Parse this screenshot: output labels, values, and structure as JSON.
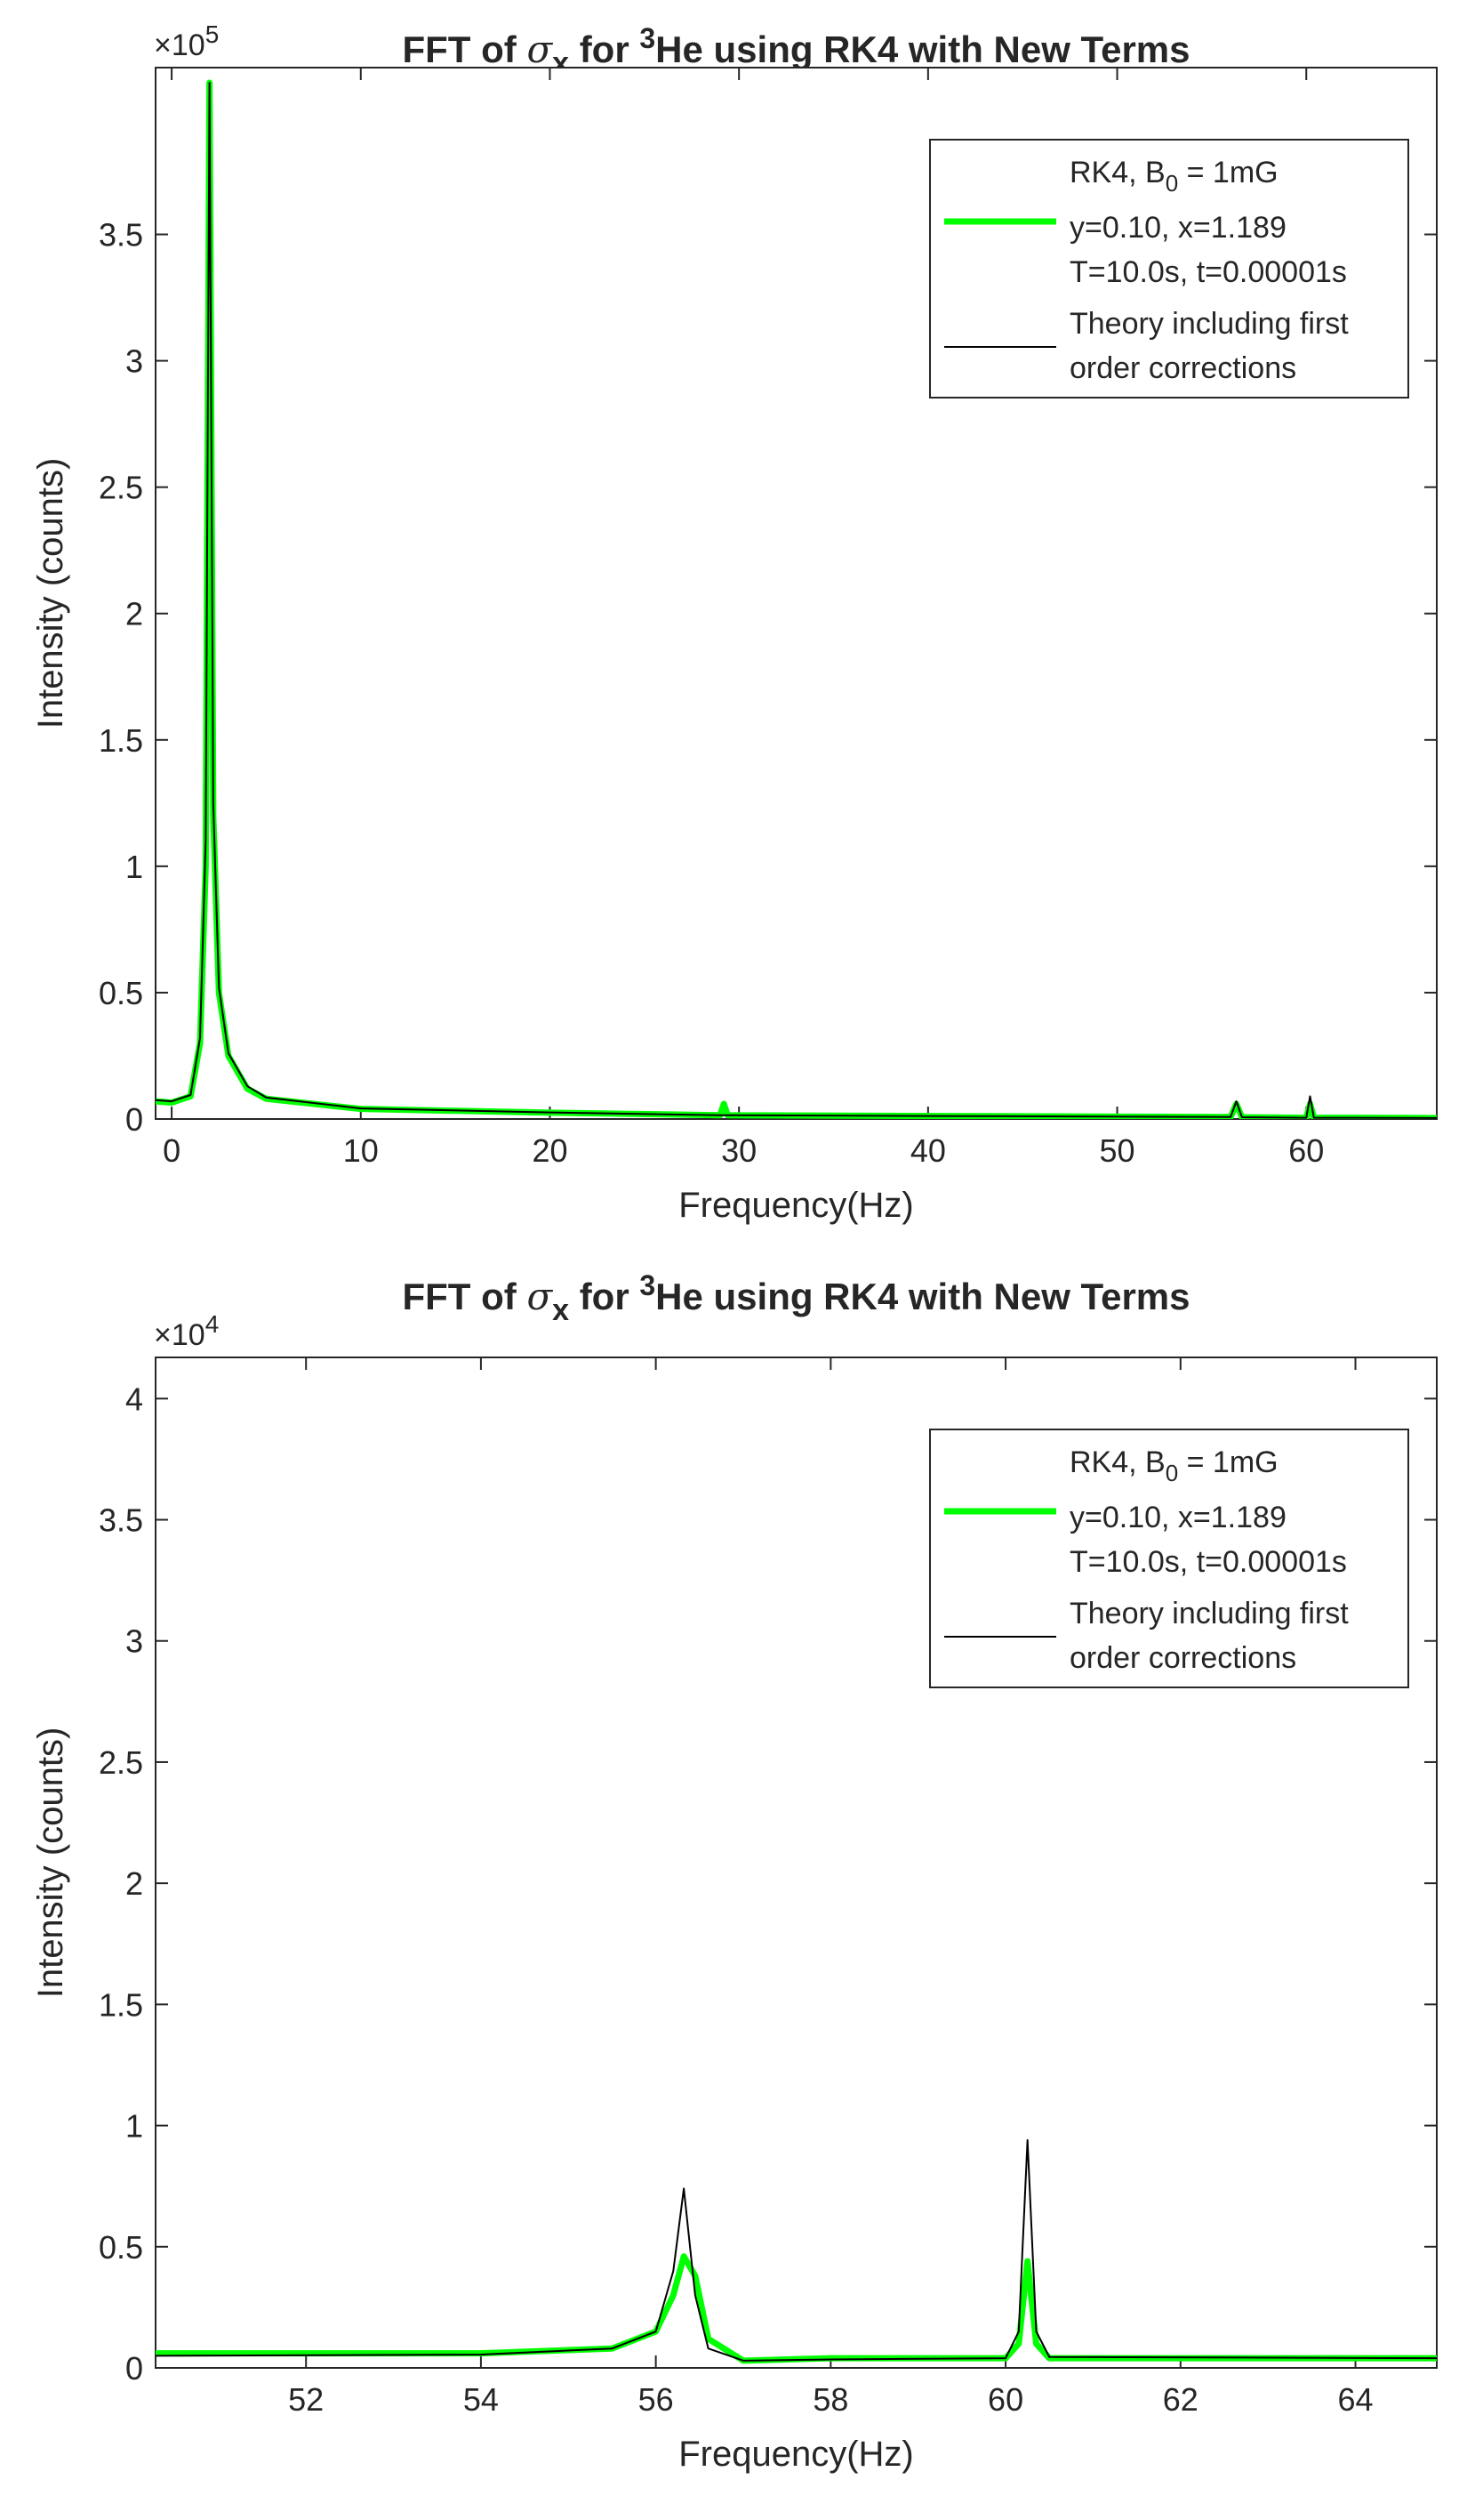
{
  "chart_data": [
    {
      "type": "line",
      "title": [
        "FFT of ",
        "σ",
        "x",
        " for ",
        "3",
        "He using RK4 with New Terms"
      ],
      "x_label": "Frequency(Hz)",
      "y_label": "Intensity (counts)",
      "y_multiplier": [
        "×10",
        "5"
      ],
      "x": [
        -0.85,
        0,
        1,
        1.5,
        1.8,
        2.0,
        2.2,
        2.5,
        3,
        4,
        5,
        10,
        20,
        29,
        29.2,
        29.4,
        40,
        56,
        56.3,
        56.6,
        60,
        60.2,
        60.4,
        66.9
      ],
      "series": [
        {
          "name": [
            [
              "RK4, B",
              "0",
              " = 1mG"
            ],
            [
              "y=0.10, x=1.189"
            ],
            [
              "T=10.0s, t=0.00001s"
            ]
          ],
          "color": "#00ff00",
          "values": [
            7000,
            6500,
            9000,
            30000,
            100000,
            410000,
            120000,
            50000,
            25000,
            12000,
            8000,
            4000,
            2500,
            1500,
            6000,
            1500,
            1200,
            800,
            6000,
            700,
            500,
            6000,
            500,
            400
          ]
        },
        {
          "name": [
            [
              "Theory including first"
            ],
            [
              "order corrections"
            ]
          ],
          "color": "#000000",
          "values": [
            7500,
            7000,
            9500,
            32000,
            110000,
            410000,
            125000,
            52000,
            26000,
            13000,
            8500,
            4200,
            2600,
            1500,
            1500,
            1500,
            1200,
            800,
            7000,
            700,
            500,
            9000,
            500,
            400
          ]
        }
      ],
      "xlim": [
        -0.85,
        66.9
      ],
      "xticks": [
        0,
        10,
        20,
        30,
        40,
        50,
        60
      ],
      "ylim": [
        0,
        416000
      ],
      "yticks": [
        0,
        {
          "value": 50000,
          "label": "0.5"
        },
        {
          "value": 100000,
          "label": "1"
        },
        {
          "value": 150000,
          "label": "1.5"
        },
        {
          "value": 200000,
          "label": "2"
        },
        {
          "value": 250000,
          "label": "2.5"
        },
        {
          "value": 300000,
          "label": "3"
        },
        {
          "value": 350000,
          "label": "3.5"
        }
      ],
      "legend": "top-right"
    },
    {
      "type": "line",
      "title": [
        "FFT of ",
        "σ",
        "x",
        " for ",
        "3",
        "He using RK4 with New Terms"
      ],
      "x_label": "Frequency(Hz)",
      "y_label": "Intensity (counts)",
      "y_multiplier": [
        "×10",
        "4"
      ],
      "x": [
        50.28,
        54,
        55.5,
        56,
        56.2,
        56.32,
        56.45,
        56.6,
        57,
        58,
        60,
        60.15,
        60.25,
        60.35,
        60.5,
        64.93
      ],
      "series": [
        {
          "name": [
            [
              "RK4, B",
              "0",
              " = 1mG"
            ],
            [
              "y=0.10, x=1.189"
            ],
            [
              "T=10.0s, t=0.00001s"
            ]
          ],
          "color": "#00ff00",
          "values": [
            600,
            600,
            800,
            1500,
            3000,
            4600,
            3800,
            1200,
            300,
            400,
            400,
            1000,
            4400,
            1000,
            400,
            400
          ]
        },
        {
          "name": [
            [
              "Theory including first"
            ],
            [
              "order corrections"
            ]
          ],
          "color": "#000000",
          "values": [
            500,
            550,
            800,
            1500,
            4000,
            7400,
            3000,
            800,
            300,
            350,
            400,
            1500,
            9400,
            1500,
            450,
            400
          ]
        }
      ],
      "xlim": [
        50.28,
        64.93
      ],
      "xticks": [
        52,
        54,
        56,
        58,
        60,
        62,
        64
      ],
      "ylim": [
        0,
        41700
      ],
      "yticks": [
        0,
        {
          "value": 5000,
          "label": "0.5"
        },
        {
          "value": 10000,
          "label": "1"
        },
        {
          "value": 15000,
          "label": "1.5"
        },
        {
          "value": 20000,
          "label": "2"
        },
        {
          "value": 25000,
          "label": "2.5"
        },
        {
          "value": 30000,
          "label": "3"
        },
        {
          "value": 35000,
          "label": "3.5"
        },
        {
          "value": 40000,
          "label": "4"
        }
      ],
      "legend": "top-right"
    }
  ]
}
